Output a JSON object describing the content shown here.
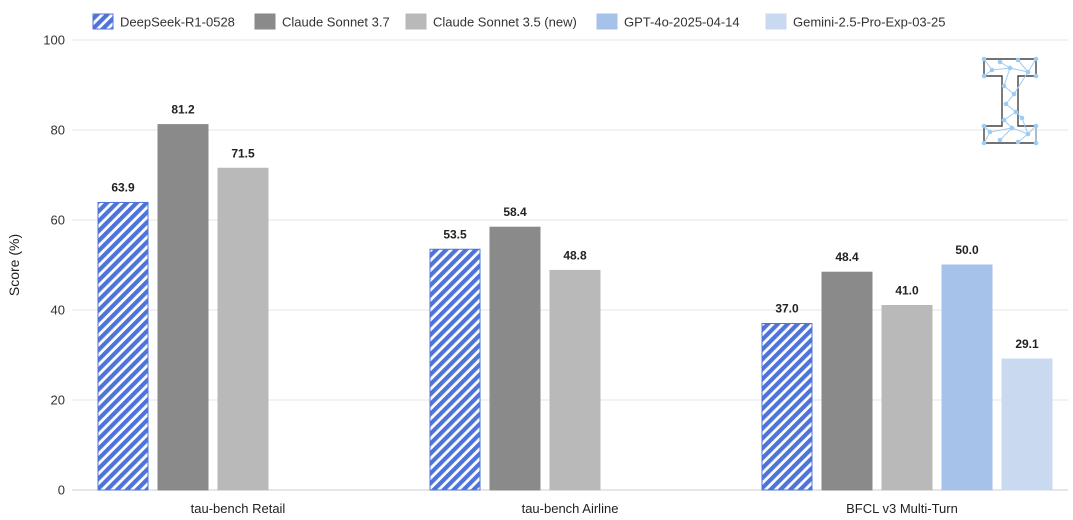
{
  "chart_data": {
    "type": "bar",
    "title": "",
    "xlabel": "",
    "ylabel": "Score (%)",
    "ylim": [
      0,
      100
    ],
    "yticks": [
      0,
      20,
      40,
      60,
      80,
      100
    ],
    "grid": true,
    "legend_position": "top",
    "categories": [
      "tau-bench Retail",
      "tau-bench Airline",
      "BFCL v3 Multi-Turn"
    ],
    "series": [
      {
        "name": "DeepSeek-R1-0528",
        "color": "#4f74d9",
        "pattern": "hatch",
        "values": [
          63.9,
          53.5,
          37.0
        ],
        "labels": [
          "63.9",
          "53.5",
          "37.0"
        ]
      },
      {
        "name": "Claude Sonnet 3.7",
        "color": "#8a8a8a",
        "pattern": "solid",
        "values": [
          81.2,
          58.4,
          48.4
        ],
        "labels": [
          "81.2",
          "58.4",
          "48.4"
        ]
      },
      {
        "name": "Claude Sonnet 3.5 (new)",
        "color": "#b9b9b9",
        "pattern": "solid",
        "values": [
          71.5,
          48.8,
          41.0
        ],
        "labels": [
          "71.5",
          "48.8",
          "41.0"
        ]
      },
      {
        "name": "GPT-4o-2025-04-14",
        "color": "#a6c1ea",
        "pattern": "solid",
        "values": [
          null,
          null,
          50.0
        ],
        "labels": [
          "",
          "",
          "50.0"
        ]
      },
      {
        "name": "Gemini-2.5-Pro-Exp-03-25",
        "color": "#c9d9f0",
        "pattern": "solid",
        "values": [
          null,
          null,
          29.1
        ],
        "labels": [
          "",
          "",
          "29.1"
        ]
      }
    ]
  },
  "logo": {
    "icon": "network-i-logo-icon",
    "color": "#9ecbf2"
  }
}
